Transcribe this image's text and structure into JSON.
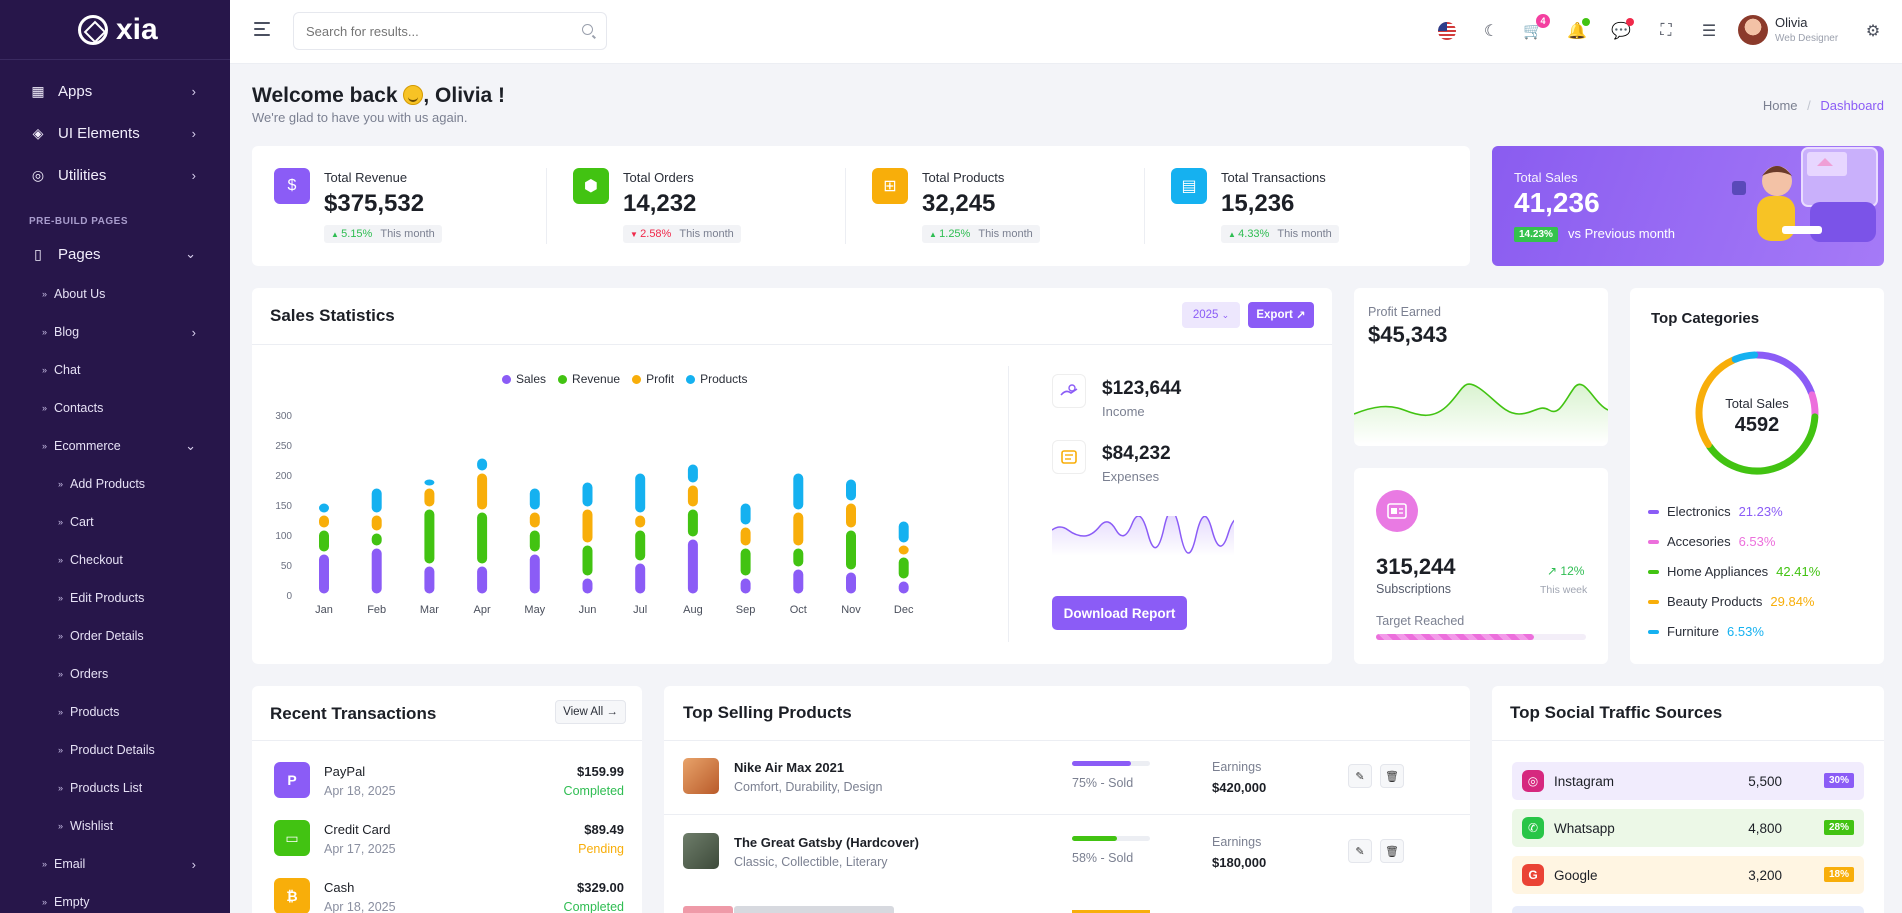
{
  "app": {
    "name": "xia"
  },
  "sidebar": {
    "items": [
      {
        "label": "Apps",
        "icon": "grid-icon"
      },
      {
        "label": "UI Elements",
        "icon": "box-icon"
      },
      {
        "label": "Utilities",
        "icon": "medal-icon"
      }
    ],
    "section": "PRE-BUILD PAGES",
    "pages": {
      "label": "Pages",
      "sub": [
        "About Us",
        "Blog",
        "Chat",
        "Contacts",
        "Ecommerce"
      ],
      "ecommerce": [
        "Add Products",
        "Cart",
        "Checkout",
        "Edit Products",
        "Order Details",
        "Orders",
        "Products",
        "Product Details",
        "Products List",
        "Wishlist"
      ],
      "after": [
        "Email",
        "Empty"
      ]
    }
  },
  "header": {
    "search_placeholder": "Search for results...",
    "cart_count": "4",
    "user_name": "Olivia",
    "user_role": "Web Designer"
  },
  "welcome": {
    "title_start": "Welcome back",
    "title_end": ", Olivia !",
    "subtitle": "We're glad to have you with us again.",
    "crumb_home": "Home",
    "crumb_sep": "/",
    "crumb_active": "Dashboard"
  },
  "stats": [
    {
      "title": "Total Revenue",
      "value": "$375,532",
      "change": "5.15%",
      "dir": "up",
      "period": "This month",
      "color": "#8b5cf6"
    },
    {
      "title": "Total Orders",
      "value": "14,232",
      "change": "2.58%",
      "dir": "down",
      "period": "This month",
      "color": "#42c312"
    },
    {
      "title": "Total Products",
      "value": "32,245",
      "change": "1.25%",
      "dir": "up",
      "period": "This month",
      "color": "#f8ae0a"
    },
    {
      "title": "Total Transactions",
      "value": "15,236",
      "change": "4.33%",
      "dir": "up",
      "period": "This month",
      "color": "#15b1f0"
    }
  ],
  "total_sales": {
    "title": "Total Sales",
    "value": "41,236",
    "pct": "14.23%",
    "vs": "vs Previous month"
  },
  "sales_stats": {
    "title": "Sales Statistics",
    "year": "2025",
    "export": "Export"
  },
  "chart_data": {
    "type": "bar",
    "stacked": true,
    "categories": [
      "Jan",
      "Feb",
      "Mar",
      "Apr",
      "May",
      "Jun",
      "Jul",
      "Aug",
      "Sep",
      "Oct",
      "Nov",
      "Dec"
    ],
    "ylim": [
      0,
      300
    ],
    "yticks": [
      0,
      50,
      100,
      150,
      200,
      250,
      300
    ],
    "series": [
      {
        "name": "Sales",
        "color": "#8b5cf6",
        "values": [
          70,
          80,
          50,
          50,
          70,
          30,
          55,
          95,
          30,
          45,
          40,
          25
        ]
      },
      {
        "name": "Revenue",
        "color": "#42c312",
        "values": [
          40,
          25,
          95,
          90,
          40,
          55,
          55,
          50,
          50,
          35,
          70,
          40
        ]
      },
      {
        "name": "Profit",
        "color": "#f8ae0a",
        "values": [
          25,
          30,
          35,
          65,
          30,
          60,
          25,
          40,
          35,
          60,
          45,
          20
        ]
      },
      {
        "name": "Products",
        "color": "#15b1f0",
        "values": [
          20,
          45,
          15,
          25,
          40,
          45,
          70,
          35,
          40,
          65,
          40,
          40
        ]
      }
    ]
  },
  "income": {
    "value": "$123,644",
    "label": "Income"
  },
  "expenses": {
    "value": "$84,232",
    "label": "Expenses"
  },
  "download": "Download Report",
  "profit": {
    "label": "Profit Earned",
    "value": "$45,343"
  },
  "subs": {
    "value": "315,244",
    "label": "Subscriptions",
    "pct": "12%",
    "period": "This week",
    "target": "Target Reached",
    "progress": 0.75
  },
  "top_categories": {
    "title": "Top Categories",
    "total_label": "Total Sales",
    "total": "4592",
    "items": [
      {
        "name": "Electronics",
        "pct": "21.23%",
        "color": "#8b5cf6"
      },
      {
        "name": "Accesories",
        "pct": "6.53%",
        "color": "#ec6fdc"
      },
      {
        "name": "Home Appliances",
        "pct": "42.41%",
        "color": "#42c312"
      },
      {
        "name": "Beauty Products",
        "pct": "29.84%",
        "color": "#f8ae0a"
      },
      {
        "name": "Furniture",
        "pct": "6.53%",
        "color": "#15b1f0"
      }
    ]
  },
  "transactions": {
    "title": "Recent Transactions",
    "view_all": "View All",
    "rows": [
      {
        "name": "PayPal",
        "date": "Apr 18, 2025",
        "amount": "$159.99",
        "status": "Completed",
        "color": "#8b5cf6"
      },
      {
        "name": "Credit Card",
        "date": "Apr 17, 2025",
        "amount": "$89.49",
        "status": "Pending",
        "color": "#42c312"
      },
      {
        "name": "Cash",
        "date": "Apr 18, 2025",
        "amount": "$329.00",
        "status": "Completed",
        "color": "#f8ae0a"
      }
    ]
  },
  "top_products": {
    "title": "Top Selling Products",
    "rows": [
      {
        "name": "Nike Air Max 2021",
        "tags": "Comfort, Durability, Design",
        "pct": "75% - Sold",
        "progress": 0.75,
        "bar": "#8b5cf6",
        "earn_label": "Earnings",
        "earnings": "$420,000"
      },
      {
        "name": "The Great Gatsby (Hardcover)",
        "tags": "Classic, Collectible, Literary",
        "pct": "58% - Sold",
        "progress": 0.58,
        "bar": "#42c312",
        "earn_label": "Earnings",
        "earnings": "$180,000"
      }
    ]
  },
  "social": {
    "title": "Top Social Traffic Sources",
    "rows": [
      {
        "name": "Instagram",
        "value": "5,500",
        "pct": "30%",
        "bg": "#f1ecfd",
        "tag": "#8b5cf6",
        "ic": "#d6287f"
      },
      {
        "name": "Whatsapp",
        "value": "4,800",
        "pct": "28%",
        "bg": "#ecf8e7",
        "tag": "#42c312",
        "ic": "#28c547"
      },
      {
        "name": "Google",
        "value": "3,200",
        "pct": "18%",
        "bg": "#fff5e2",
        "tag": "#f8ae0a",
        "ic": "#ea4335"
      }
    ]
  }
}
